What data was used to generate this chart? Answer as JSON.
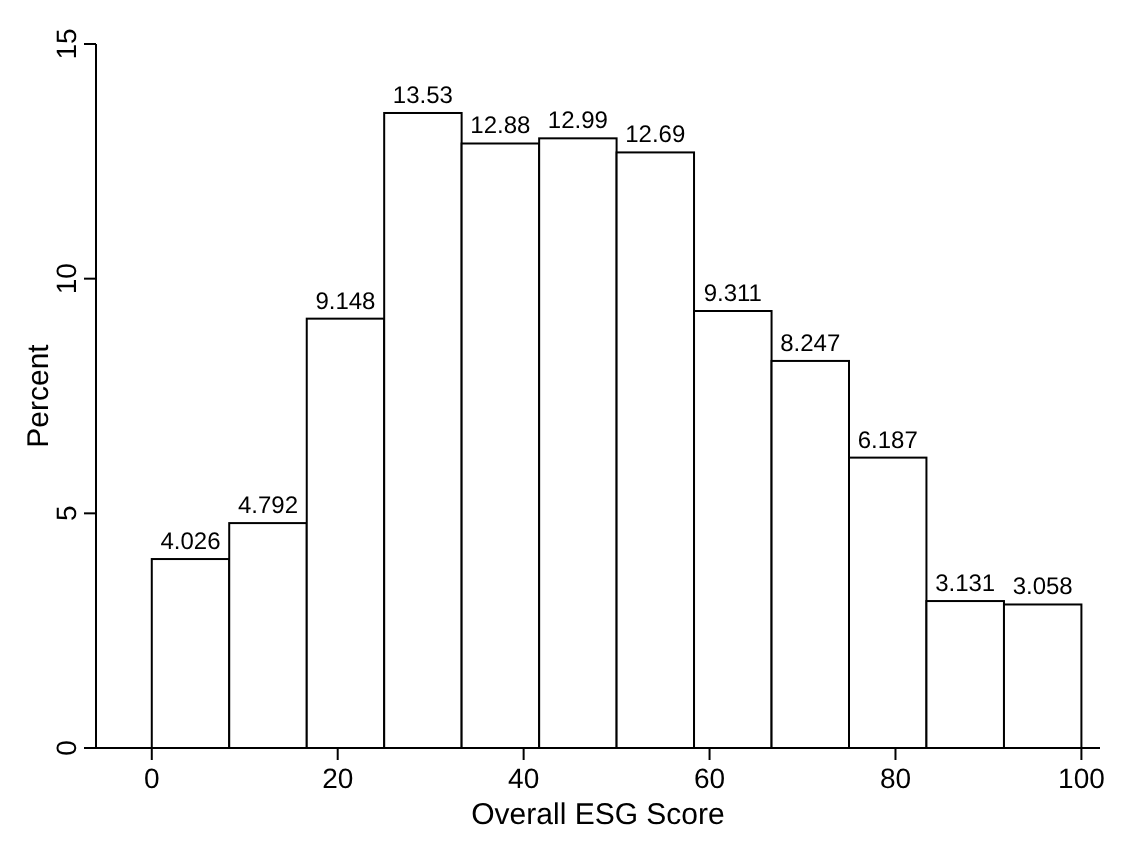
{
  "chart_data": {
    "type": "histogram",
    "xlabel": "Overall ESG Score",
    "ylabel": "Percent",
    "bins": [
      0,
      8.33,
      16.67,
      25,
      33.33,
      41.67,
      50,
      58.33,
      66.67,
      75,
      83.33,
      91.67,
      100
    ],
    "values": [
      4.026,
      4.792,
      9.148,
      13.53,
      12.88,
      12.99,
      12.69,
      9.311,
      8.247,
      6.187,
      3.131,
      3.058
    ],
    "value_labels": [
      "4.026",
      "4.792",
      "9.148",
      "13.53",
      "12.88",
      "12.99",
      "12.69",
      "9.311",
      "8.247",
      "6.187",
      "3.131",
      "3.058"
    ],
    "color": "#ffffff",
    "xlim": [
      -6,
      102
    ],
    "ylim": [
      0,
      15
    ],
    "xticks": [
      0,
      20,
      40,
      60,
      80,
      100
    ],
    "yticks": [
      0,
      5,
      10,
      15
    ],
    "grid": false
  }
}
